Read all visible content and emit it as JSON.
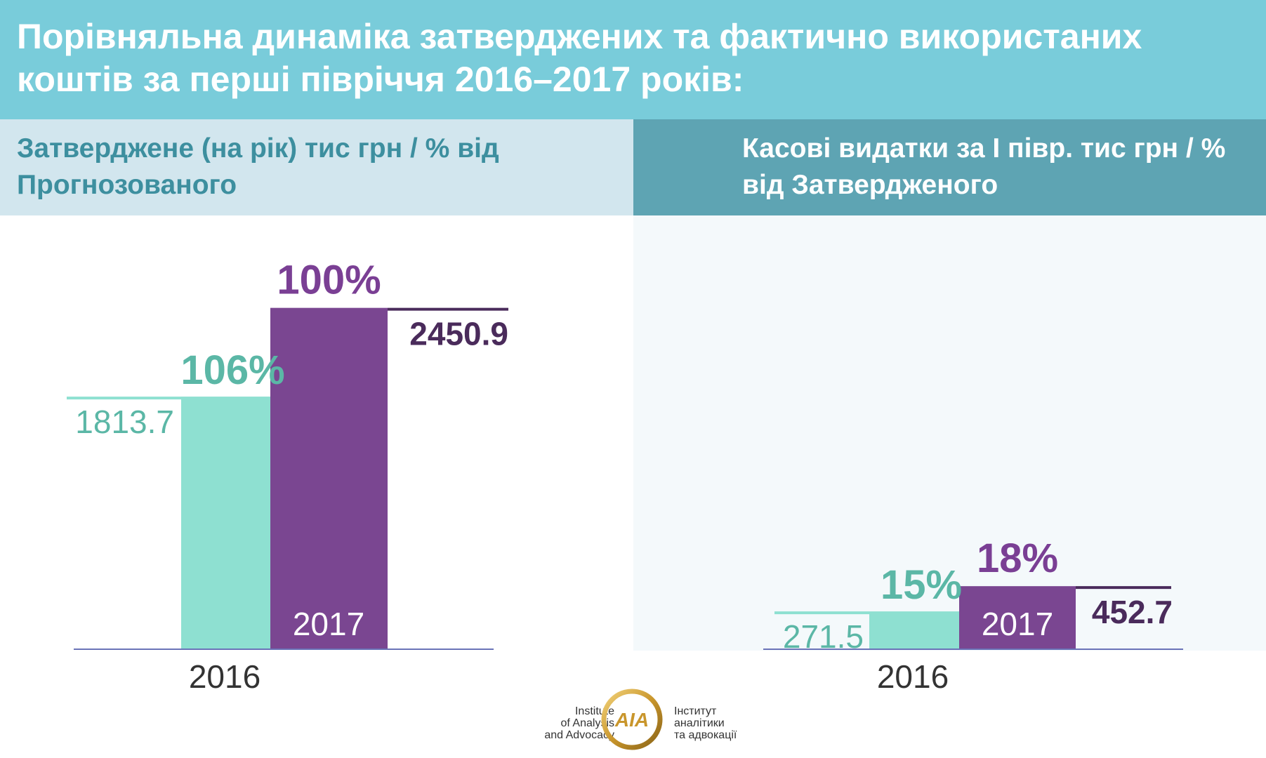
{
  "header": {
    "title": "Порівняльна динаміка затверджених та фактично використаних коштів за перші півріччя 2016–2017 років:"
  },
  "panels": {
    "left_title": "Затверджене (на рік) тис грн / % від Прогнозованого",
    "right_title": "Касові видатки за І півр. тис грн / % від Затвердженого"
  },
  "colors": {
    "teal": "#8ee0d1",
    "purple": "#7a4691",
    "teal_text": "#5bb7a6",
    "purple_text": "#7a3f94",
    "value_dark": "#4a2b5b",
    "axis": "#6a73b8"
  },
  "chart_data": [
    {
      "type": "bar",
      "title": "Затверджене (на рік) тис грн / % від Прогнозованого",
      "categories": [
        "2016",
        "2017"
      ],
      "values": [
        1813.7,
        2450.9
      ],
      "percent_labels": [
        "106%",
        "100%"
      ],
      "value_labels": [
        "1813.7",
        "2450.9"
      ],
      "ylim": [
        0,
        2560
      ]
    },
    {
      "type": "bar",
      "title": "Касові видатки за І півр. тис грн / % від Затвердженого",
      "categories": [
        "2016",
        "2017"
      ],
      "values": [
        271.5,
        452.7
      ],
      "percent_labels": [
        "15%",
        "18%"
      ],
      "value_labels": [
        "271.5",
        "452.7"
      ],
      "ylim": [
        0,
        2560
      ]
    }
  ],
  "logo": {
    "en_line1": "Institute",
    "en_line2": "of Analysis",
    "en_line3": "and Advocacy",
    "ua_line1": "Інститут",
    "ua_line2": "аналітики",
    "ua_line3": "та адвокації",
    "mark": "AIA"
  }
}
